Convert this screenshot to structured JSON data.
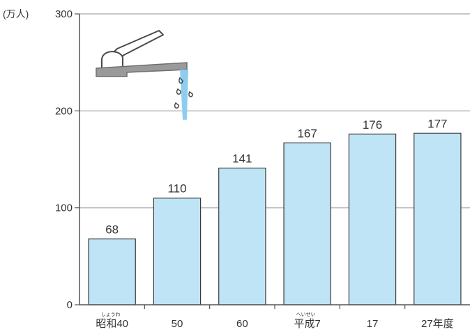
{
  "colors": {
    "bar_fill": "#bfe4f6",
    "bar_stroke": "#3a3a3a",
    "grid": "#b5b5b5",
    "axis": "#555555",
    "text": "#333333",
    "faucet_body": "#9a9a9a",
    "water": "#8ecdf0"
  },
  "icons": {
    "illustration": "water-faucet-icon"
  },
  "chart_data": {
    "type": "bar",
    "y_unit_label": "(万人)",
    "categories": [
      "昭和40",
      "50",
      "60",
      "平成7",
      "17",
      "27年度"
    ],
    "category_ruby": [
      "しょうわ",
      "",
      "",
      "へいせい",
      "",
      ""
    ],
    "values": [
      68,
      110,
      141,
      167,
      176,
      177
    ],
    "data_labels": [
      "68",
      "110",
      "141",
      "167",
      "176",
      "177"
    ],
    "yticks": [
      0,
      100,
      200,
      300
    ],
    "ytick_labels": [
      "0",
      "100",
      "200",
      "300"
    ],
    "ylim": [
      0,
      300
    ],
    "grid": true,
    "title": "",
    "xlabel": "",
    "ylabel": ""
  }
}
